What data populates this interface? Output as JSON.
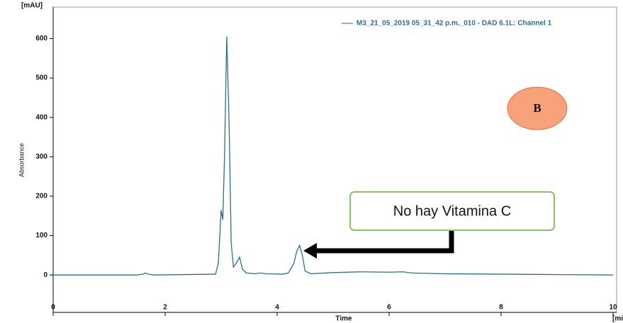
{
  "chart_data": {
    "type": "line",
    "y_unit": "[mAU]",
    "y_label": "Absorbance",
    "x_label": "Time",
    "x_unit": "[mi",
    "x": [
      0,
      1.5,
      1.6,
      1.65,
      1.7,
      1.8,
      2.9,
      2.95,
      3.0,
      3.03,
      3.06,
      3.1,
      3.14,
      3.18,
      3.22,
      3.27,
      3.33,
      3.38,
      3.45,
      3.6,
      3.7,
      3.8,
      4.1,
      4.2,
      4.3,
      4.35,
      4.4,
      4.45,
      4.5,
      4.6,
      5.0,
      5.5,
      6.0,
      6.25,
      6.4,
      7,
      8,
      9,
      10
    ],
    "series": [
      {
        "name": "M3_21_05_2019 05_31_42 p.m._010 - DAD 6.1L: Channel 1",
        "color": "#2e6f86",
        "values": [
          0,
          0,
          2,
          5,
          2,
          0,
          2,
          30,
          165,
          140,
          300,
          605,
          400,
          80,
          20,
          30,
          45,
          15,
          5,
          3,
          5,
          3,
          2,
          5,
          30,
          60,
          75,
          50,
          10,
          3,
          6,
          8,
          7,
          8,
          5,
          3,
          2,
          1,
          0
        ]
      }
    ],
    "xlim": [
      0,
      10
    ],
    "xticks": [
      0,
      2,
      4,
      6,
      8,
      10
    ],
    "ylim": [
      -95,
      680
    ],
    "yticks": [
      0,
      100,
      200,
      300,
      400,
      500,
      600
    ],
    "annotations": {
      "label": "No hay Vitamina C",
      "badge": "B"
    }
  }
}
